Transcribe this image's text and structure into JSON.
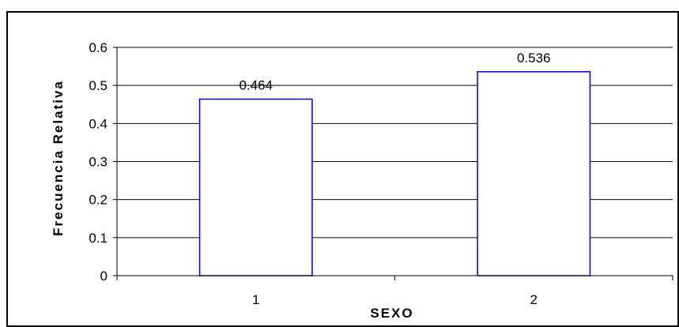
{
  "chart_data": {
    "type": "bar",
    "categories": [
      "1",
      "2"
    ],
    "values": [
      0.464,
      0.536
    ],
    "data_labels": [
      "0.464",
      "0.536"
    ],
    "xlabel": "SEXO",
    "ylabel": "Frecuencia Relativa",
    "ylim": [
      0,
      0.6
    ],
    "yticks": [
      "0",
      "0.1",
      "0.2",
      "0.3",
      "0.4",
      "0.5",
      "0.6"
    ],
    "grid": true,
    "legend": "none",
    "bar_fill": "#ffffff",
    "bar_stroke": "#0000cc",
    "grid_color": "#000000",
    "frame_color": "#000000"
  }
}
